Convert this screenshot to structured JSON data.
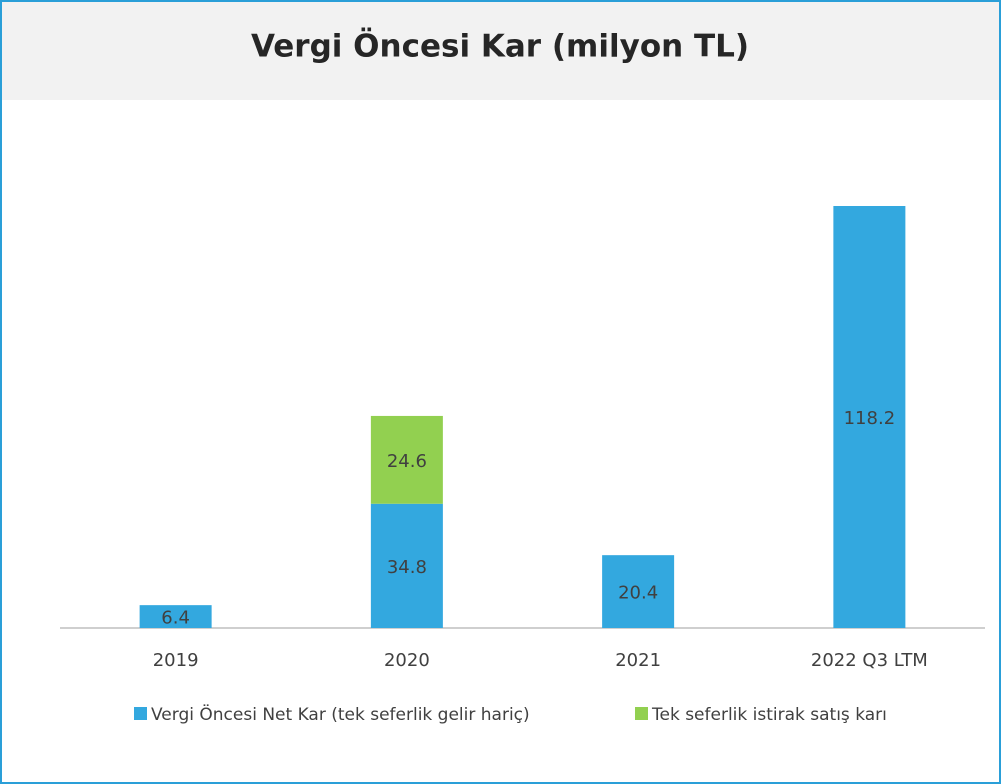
{
  "chart_data": {
    "type": "stacked-bar",
    "title": "Vergi Öncesi Kar (milyon TL)",
    "categories": [
      "2019",
      "2020",
      "2021",
      "2022 Q3 LTM"
    ],
    "series": [
      {
        "name": "Vergi Öncesi Net Kar (tek seferlik gelir hariç)",
        "color": "#33a8df",
        "values": [
          6.4,
          34.8,
          20.4,
          118.2
        ]
      },
      {
        "name": "Tek seferlik istirak satış karı",
        "color": "#92d050",
        "values": [
          null,
          24.6,
          null,
          null
        ]
      }
    ],
    "legend": "bottom"
  }
}
